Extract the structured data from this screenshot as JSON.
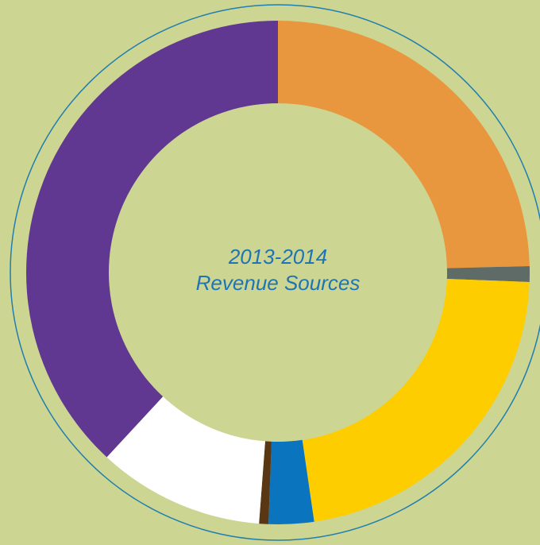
{
  "chart_data": {
    "type": "donut",
    "title": "2013-2014",
    "subtitle": "Revenue Sources",
    "values": [
      24.6,
      1.0,
      22.1,
      2.9,
      0.6,
      10.7,
      38.1
    ],
    "colors": [
      "#e8973e",
      "#5e6b66",
      "#fecd00",
      "#0b74be",
      "#5a3714",
      "#ffffff",
      "#603891"
    ],
    "ring_color": "#1f7fb0",
    "background": "#cdd592"
  }
}
